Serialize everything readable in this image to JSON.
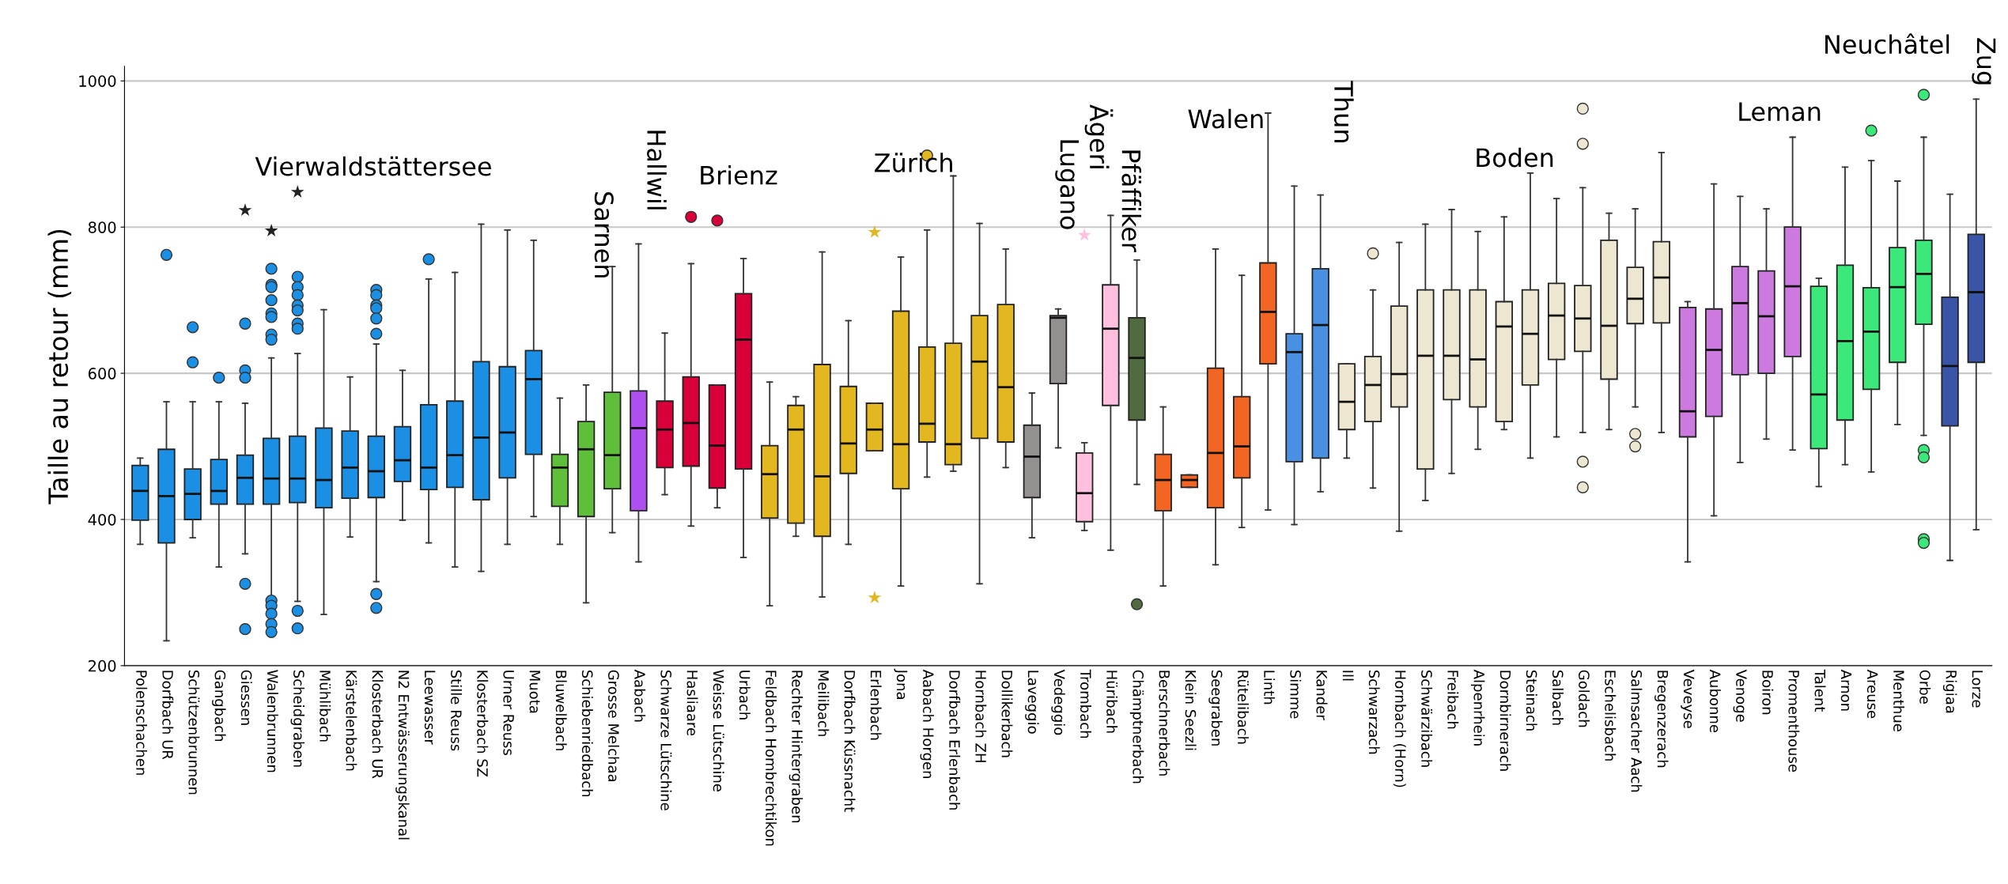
{
  "chart_data": {
    "type": "box",
    "ylabel": "Taille au retour (mm)",
    "categories": [
      "Polenschachen",
      "Dorfbach UR",
      "Schützenbrunnen",
      "Gangbach",
      "Giessen",
      "Walenbrunnen",
      "Scheidgraben",
      "Mühlibach",
      "Kärstelenbach",
      "Klosterbach UR",
      "N2 Entwässerungskanal",
      "Leewasser",
      "Stille Reuss",
      "Klosterbach SZ",
      "Urner Reuss",
      "Muota",
      "Bluwelbach",
      "Schiebenriedbach",
      "Grosse Melchaa",
      "Aabach",
      "Schwarze Lütschine",
      "Hasliaare",
      "Weisse Lütschine",
      "Urbach",
      "Feldbach Hombrechtikon",
      "Rechter Hintergraben",
      "Meilibach",
      "Dorfbach Küssnacht",
      "Erlenbach",
      "Jona",
      "Aabach Horgen",
      "Dorfbach Erlenbach",
      "Hornbach ZH",
      "Dollikerbach",
      "Laveggio",
      "Vedeggio",
      "Trombach",
      "Hüribach",
      "Chämptnerbach",
      "Berschnerbach",
      "Klein Seezli",
      "Seegraben",
      "Rütelibach",
      "Linth",
      "Simme",
      "Kander",
      "Ill",
      "Schwarzach",
      "Hornbach (Horn)",
      "Schwärzibach",
      "Freibach",
      "Alpenrhein",
      "Dornbirnerach",
      "Steinach",
      "Salbach",
      "Goldach",
      "Eschelisbach",
      "Salmsacher Aach",
      "Bregenzerach",
      "Veveyse",
      "Aubonne",
      "Venoge",
      "Boiron",
      "Promenthouse",
      "Talent",
      "Arnon",
      "Areuse",
      "Menthue",
      "Orbe",
      "Rigiaa",
      "Lorze"
    ],
    "colors": [
      "#1a8fe3",
      "#1a8fe3",
      "#1a8fe3",
      "#1a8fe3",
      "#1a8fe3",
      "#1a8fe3",
      "#1a8fe3",
      "#1a8fe3",
      "#1a8fe3",
      "#1a8fe3",
      "#1a8fe3",
      "#1a8fe3",
      "#1a8fe3",
      "#1a8fe3",
      "#1a8fe3",
      "#1a8fe3",
      "#5fbf3a",
      "#5fbf3a",
      "#5fbf3a",
      "#b04ff0",
      "#d9003a",
      "#d9003a",
      "#d9003a",
      "#d9003a",
      "#e3b71f",
      "#e3b71f",
      "#e3b71f",
      "#e3b71f",
      "#e3b71f",
      "#e3b71f",
      "#e3b71f",
      "#e3b71f",
      "#e3b71f",
      "#e3b71f",
      "#959090",
      "#959090",
      "#ffc0e0",
      "#ffc0e0",
      "#4f6b3f",
      "#f26522",
      "#f26522",
      "#f26522",
      "#f26522",
      "#f26522",
      "#4a90e2",
      "#4a90e2",
      "#ede6d0",
      "#ede6d0",
      "#ede6d0",
      "#ede6d0",
      "#ede6d0",
      "#ede6d0",
      "#ede6d0",
      "#ede6d0",
      "#ede6d0",
      "#ede6d0",
      "#ede6d0",
      "#ede6d0",
      "#ede6d0",
      "#cc7ae0",
      "#cc7ae0",
      "#cc7ae0",
      "#cc7ae0",
      "#cc7ae0",
      "#3de87a",
      "#3de87a",
      "#3de87a",
      "#3de87a",
      "#3de87a",
      "#3a55a8",
      "#3a55a8"
    ],
    "boxes": [
      {
        "low": 366,
        "q1": 399,
        "median": 439,
        "q3": 474,
        "high": 484
      },
      {
        "low": 234,
        "q1": 368,
        "median": 432,
        "q3": 496,
        "high": 561,
        "outliers": [
          762
        ]
      },
      {
        "low": 375,
        "q1": 400,
        "median": 435,
        "q3": 469,
        "high": 561,
        "outliers": [
          663,
          615
        ]
      },
      {
        "low": 335,
        "q1": 421,
        "median": 439,
        "q3": 482,
        "high": 561,
        "outliers": [
          594
        ]
      },
      {
        "low": 353,
        "q1": 421,
        "median": 457,
        "q3": 488,
        "high": 559,
        "outliers": [
          668,
          604,
          594,
          312,
          250
        ]
      },
      {
        "low": 295,
        "q1": 421,
        "median": 456,
        "q3": 511,
        "high": 621,
        "outliers": [
          743,
          721,
          718,
          700,
          682,
          677,
          653,
          646,
          289,
          282,
          271,
          257,
          246
        ]
      },
      {
        "low": 288,
        "q1": 423,
        "median": 456,
        "q3": 514,
        "high": 627,
        "outliers": [
          732,
          718,
          707,
          693,
          686,
          668,
          661,
          275,
          251
        ]
      },
      {
        "low": 270,
        "q1": 416,
        "median": 454,
        "q3": 525,
        "high": 687
      },
      {
        "low": 376,
        "q1": 429,
        "median": 471,
        "q3": 521,
        "high": 595
      },
      {
        "low": 315,
        "q1": 430,
        "median": 466,
        "q3": 514,
        "high": 640,
        "outliers": [
          714,
          707,
          693,
          689,
          675,
          654,
          298,
          279
        ]
      },
      {
        "low": 399,
        "q1": 452,
        "median": 481,
        "q3": 527,
        "high": 604
      },
      {
        "low": 368,
        "q1": 441,
        "median": 471,
        "q3": 557,
        "high": 729,
        "outliers": [
          756
        ]
      },
      {
        "low": 335,
        "q1": 444,
        "median": 488,
        "q3": 562,
        "high": 738
      },
      {
        "low": 329,
        "q1": 427,
        "median": 512,
        "q3": 616,
        "high": 804
      },
      {
        "low": 366,
        "q1": 457,
        "median": 519,
        "q3": 609,
        "high": 796
      },
      {
        "low": 404,
        "q1": 489,
        "median": 592,
        "q3": 631,
        "high": 782
      },
      {
        "low": 366,
        "q1": 418,
        "median": 471,
        "q3": 489,
        "high": 566
      },
      {
        "low": 286,
        "q1": 404,
        "median": 496,
        "q3": 534,
        "high": 584
      },
      {
        "low": 382,
        "q1": 442,
        "median": 488,
        "q3": 574,
        "high": 746
      },
      {
        "low": 342,
        "q1": 412,
        "median": 525,
        "q3": 576,
        "high": 777
      },
      {
        "low": 434,
        "q1": 471,
        "median": 523,
        "q3": 562,
        "high": 655
      },
      {
        "low": 391,
        "q1": 473,
        "median": 532,
        "q3": 595,
        "high": 750,
        "outliers": [
          814
        ]
      },
      {
        "low": 416,
        "q1": 443,
        "median": 501,
        "q3": 584,
        "high": 584,
        "outliers": [
          809
        ]
      },
      {
        "low": 348,
        "q1": 469,
        "median": 646,
        "q3": 709,
        "high": 757
      },
      {
        "low": 282,
        "q1": 402,
        "median": 462,
        "q3": 501,
        "high": 588
      },
      {
        "low": 377,
        "q1": 395,
        "median": 523,
        "q3": 556,
        "high": 568
      },
      {
        "low": 294,
        "q1": 377,
        "median": 459,
        "q3": 612,
        "high": 766
      },
      {
        "low": 366,
        "q1": 463,
        "median": 504,
        "q3": 582,
        "high": 672
      },
      {
        "low": 494,
        "q1": 494,
        "median": 523,
        "q3": 559,
        "high": 559
      },
      {
        "low": 309,
        "q1": 442,
        "median": 503,
        "q3": 685,
        "high": 759
      },
      {
        "low": 458,
        "q1": 506,
        "median": 531,
        "q3": 636,
        "high": 796,
        "outliers": [
          898
        ]
      },
      {
        "low": 466,
        "q1": 475,
        "median": 503,
        "q3": 641,
        "high": 870
      },
      {
        "low": 312,
        "q1": 511,
        "median": 616,
        "q3": 679,
        "high": 805
      },
      {
        "low": 471,
        "q1": 506,
        "median": 581,
        "q3": 694,
        "high": 770
      },
      {
        "low": 375,
        "q1": 430,
        "median": 486,
        "q3": 529,
        "high": 573
      },
      {
        "low": 498,
        "q1": 586,
        "median": 676,
        "q3": 679,
        "high": 688
      },
      {
        "low": 385,
        "q1": 397,
        "median": 436,
        "q3": 491,
        "high": 505
      },
      {
        "low": 358,
        "q1": 556,
        "median": 661,
        "q3": 721,
        "high": 816
      },
      {
        "low": 448,
        "q1": 536,
        "median": 621,
        "q3": 676,
        "high": 755,
        "outliers": [
          284
        ]
      },
      {
        "low": 309,
        "q1": 412,
        "median": 454,
        "q3": 489,
        "high": 554
      },
      {
        "low": 444,
        "q1": 444,
        "median": 454,
        "q3": 461,
        "high": 461
      },
      {
        "low": 338,
        "q1": 416,
        "median": 491,
        "q3": 607,
        "high": 770
      },
      {
        "low": 389,
        "q1": 457,
        "median": 500,
        "q3": 568,
        "high": 734
      },
      {
        "low": 413,
        "q1": 613,
        "median": 684,
        "q3": 751,
        "high": 956
      },
      {
        "low": 393,
        "q1": 479,
        "median": 629,
        "q3": 654,
        "high": 856
      },
      {
        "low": 438,
        "q1": 484,
        "median": 666,
        "q3": 743,
        "high": 844
      },
      {
        "low": 484,
        "q1": 523,
        "median": 561,
        "q3": 613,
        "high": 613
      },
      {
        "low": 443,
        "q1": 534,
        "median": 584,
        "q3": 623,
        "high": 714,
        "outliers": [
          764
        ]
      },
      {
        "low": 384,
        "q1": 554,
        "median": 599,
        "q3": 692,
        "high": 779
      },
      {
        "low": 426,
        "q1": 469,
        "median": 624,
        "q3": 714,
        "high": 804
      },
      {
        "low": 463,
        "q1": 564,
        "median": 624,
        "q3": 714,
        "high": 824
      },
      {
        "low": 496,
        "q1": 554,
        "median": 619,
        "q3": 714,
        "high": 794
      },
      {
        "low": 523,
        "q1": 534,
        "median": 664,
        "q3": 698,
        "high": 814
      },
      {
        "low": 484,
        "q1": 584,
        "median": 654,
        "q3": 714,
        "high": 874
      },
      {
        "low": 513,
        "q1": 619,
        "median": 679,
        "q3": 723,
        "high": 839
      },
      {
        "low": 519,
        "q1": 630,
        "median": 675,
        "q3": 720,
        "high": 854,
        "outliers": [
          962,
          914,
          479,
          444
        ]
      },
      {
        "low": 523,
        "q1": 592,
        "median": 665,
        "q3": 782,
        "high": 819
      },
      {
        "low": 554,
        "q1": 668,
        "median": 702,
        "q3": 745,
        "high": 825,
        "outliers": [
          517,
          500
        ]
      },
      {
        "low": 519,
        "q1": 669,
        "median": 731,
        "q3": 780,
        "high": 902
      },
      {
        "low": 342,
        "q1": 513,
        "median": 548,
        "q3": 690,
        "high": 698
      },
      {
        "low": 405,
        "q1": 541,
        "median": 632,
        "q3": 688,
        "high": 859
      },
      {
        "low": 478,
        "q1": 598,
        "median": 696,
        "q3": 746,
        "high": 842
      },
      {
        "low": 510,
        "q1": 600,
        "median": 678,
        "q3": 740,
        "high": 825
      },
      {
        "low": 495,
        "q1": 623,
        "median": 719,
        "q3": 800,
        "high": 923
      },
      {
        "low": 445,
        "q1": 497,
        "median": 571,
        "q3": 719,
        "high": 730
      },
      {
        "low": 475,
        "q1": 536,
        "median": 644,
        "q3": 748,
        "high": 882
      },
      {
        "low": 465,
        "q1": 578,
        "median": 657,
        "q3": 717,
        "high": 891,
        "outliers": [
          932
        ]
      },
      {
        "low": 530,
        "q1": 615,
        "median": 718,
        "q3": 772,
        "high": 863
      },
      {
        "low": 515,
        "q1": 667,
        "median": 736,
        "q3": 782,
        "high": 923,
        "outliers": [
          981,
          495,
          485,
          373,
          368
        ]
      },
      {
        "low": 344,
        "q1": 528,
        "median": 610,
        "q3": 704,
        "high": 845
      },
      {
        "low": 386,
        "q1": 615,
        "median": 711,
        "q3": 790,
        "high": 975
      }
    ],
    "series": [
      {
        "type": "scatter",
        "marker": "star",
        "x": [
          "Giessen",
          "Walenbrunnen",
          "Scheidgraben",
          "Erlenbach",
          "Erlenbach",
          "Trombach"
        ],
        "values": [
          823,
          795,
          848,
          793,
          293,
          789
        ],
        "colors": [
          "#222222",
          "#222222",
          "#222222",
          "#e3b71f",
          "#e3b71f",
          "#ffc0e0"
        ]
      }
    ],
    "ylim": [
      200,
      1020
    ],
    "yticks": [
      200,
      400,
      600,
      800,
      1000
    ],
    "grid": "y",
    "annotations": [
      "Vierwaldstättersee",
      "Sarnen",
      "Hallwil",
      "Brienz",
      "Zürich",
      "Lugano",
      "Ägeri",
      "Pfäffiker",
      "Walen",
      "Thun",
      "Boden",
      "Leman",
      "Neuchâtel",
      "Zug"
    ]
  }
}
